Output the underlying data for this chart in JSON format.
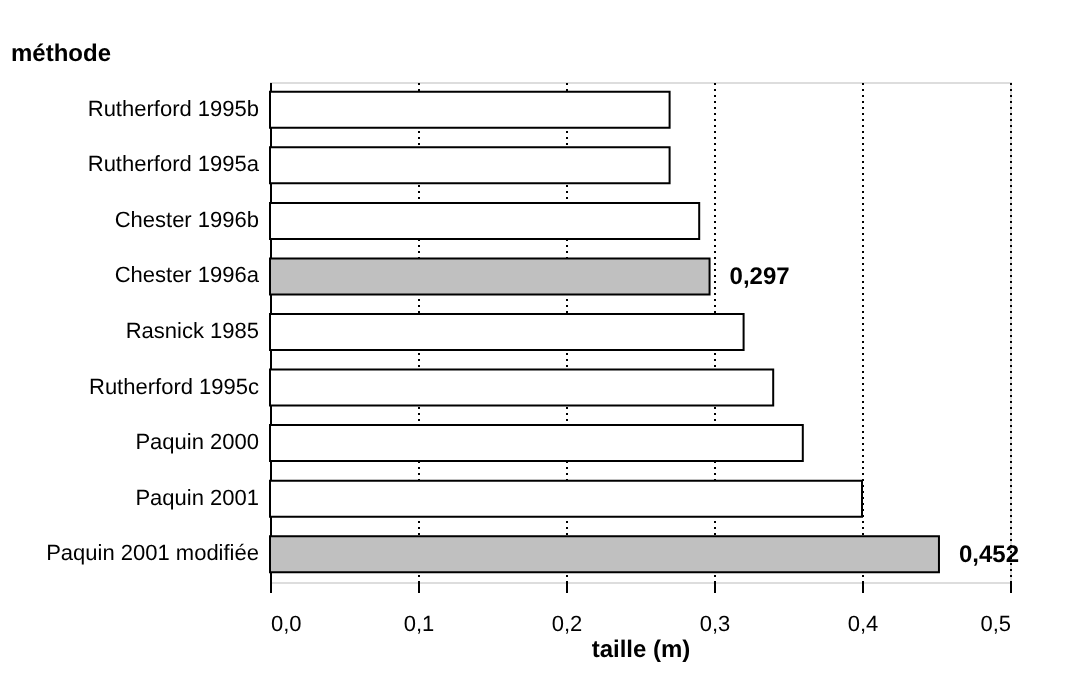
{
  "chart_data": {
    "type": "bar",
    "orientation": "horizontal",
    "xlabel": "taille (m)",
    "ylabel": "méthode",
    "categories": [
      "Rutherford 1995b",
      "Rutherford 1995a",
      "Chester 1996b",
      "Chester 1996a",
      "Rasnick 1985",
      "Rutherford 1995c",
      "Paquin 2000",
      "Paquin 2001",
      "Paquin 2001 modifiée"
    ],
    "values": [
      0.27,
      0.27,
      0.29,
      0.297,
      0.32,
      0.34,
      0.36,
      0.4,
      0.452
    ],
    "colors": [
      "#ffffff",
      "#ffffff",
      "#ffffff",
      "#c0c0c0",
      "#ffffff",
      "#ffffff",
      "#ffffff",
      "#ffffff",
      "#c0c0c0"
    ],
    "value_labels": [
      null,
      null,
      null,
      "0,297",
      null,
      null,
      null,
      null,
      "0,452"
    ],
    "xlim": [
      0,
      0.5
    ],
    "xticks": [
      {
        "value": 0,
        "label": "0,0"
      },
      {
        "value": 0.1,
        "label": "0,1"
      },
      {
        "value": 0.2,
        "label": "0,2"
      },
      {
        "value": 0.3,
        "label": "0,3"
      },
      {
        "value": 0.4,
        "label": "0,4"
      },
      {
        "value": 0.5,
        "label": "0,5"
      }
    ],
    "grid": "x"
  }
}
